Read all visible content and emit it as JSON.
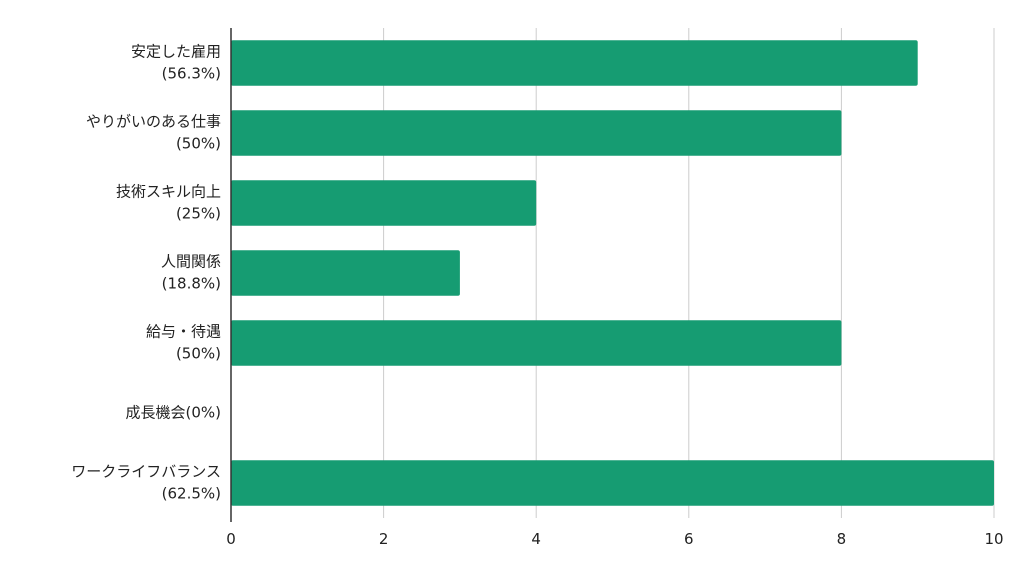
{
  "chart_data": {
    "type": "bar",
    "orientation": "horizontal",
    "categories": [
      [
        "安定した雇用",
        "(56.3%)"
      ],
      [
        "やりがいのある仕事",
        "(50%)"
      ],
      [
        "技術スキル向上",
        "(25%)"
      ],
      [
        "人間関係",
        "(18.8%)"
      ],
      [
        "給与・待遇",
        "(50%)"
      ],
      [
        "成長機会(0%)"
      ],
      [
        "ワークライフバランス",
        "(62.5%)"
      ]
    ],
    "values": [
      9,
      8,
      4,
      3,
      8,
      0,
      10
    ],
    "xlim": [
      0,
      10
    ],
    "xticks": [
      "0",
      "2",
      "4",
      "6",
      "8",
      "10"
    ],
    "title": "",
    "xlabel": "",
    "ylabel": "",
    "grid": "vertical",
    "legend": "none",
    "colors": {
      "bar": "#169c72",
      "grid": "#cccccc",
      "axis": "#333333"
    }
  }
}
